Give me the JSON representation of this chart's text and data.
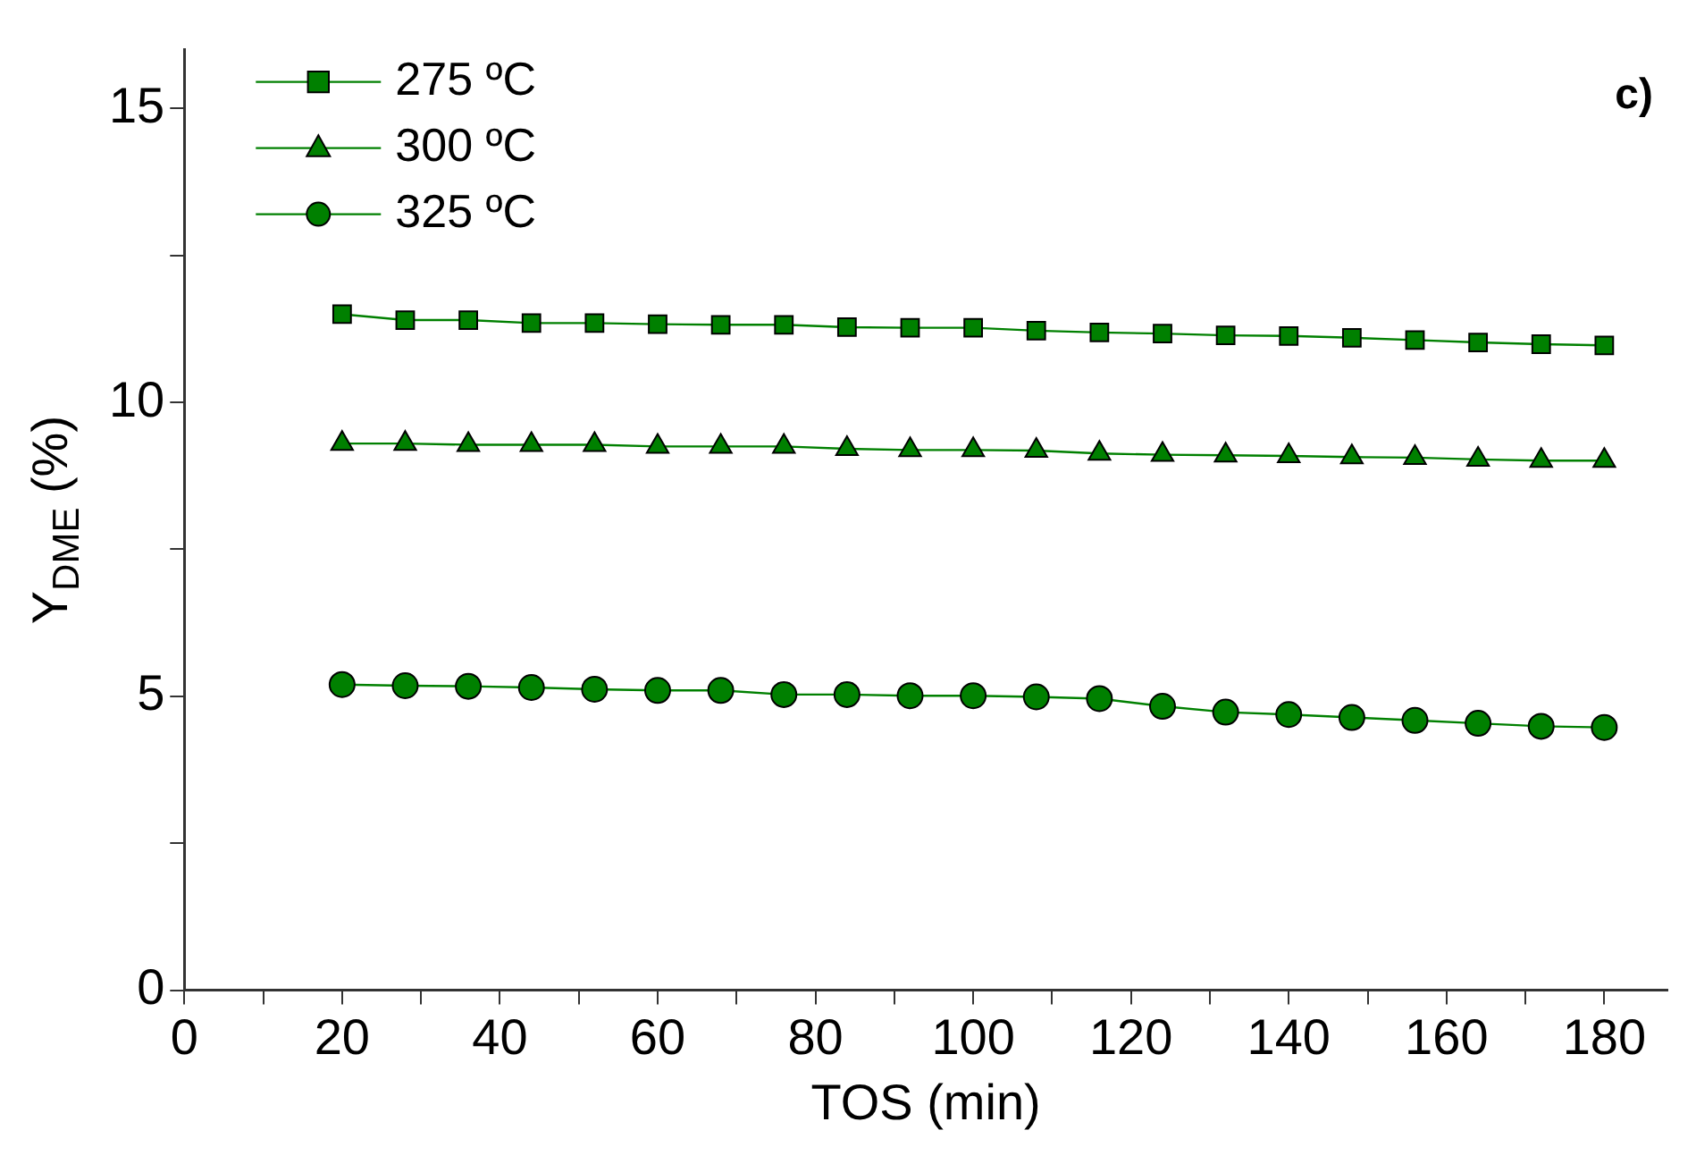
{
  "chart_data": {
    "type": "line",
    "xlabel": "TOS (min)",
    "ylabel": "Y$_{DME}$ (%)",
    "annotations": [
      "c)"
    ],
    "x": [
      20,
      28,
      36,
      44,
      52,
      60,
      68,
      76,
      84,
      92,
      100,
      108,
      116,
      124,
      132,
      140,
      148,
      156,
      164,
      172,
      180
    ],
    "series": [
      {
        "name": "275 ºC",
        "color": "#008000",
        "marker": "square",
        "values": [
          11.5,
          11.4,
          11.4,
          11.35,
          11.35,
          11.33,
          11.32,
          11.32,
          11.28,
          11.27,
          11.27,
          11.22,
          11.19,
          11.17,
          11.14,
          11.13,
          11.1,
          11.06,
          11.02,
          10.99,
          10.97
        ]
      },
      {
        "name": "300 ºC",
        "color": "#008000",
        "marker": "triangle",
        "values": [
          9.3,
          9.3,
          9.28,
          9.28,
          9.28,
          9.25,
          9.25,
          9.25,
          9.21,
          9.19,
          9.19,
          9.18,
          9.13,
          9.11,
          9.1,
          9.09,
          9.07,
          9.06,
          9.03,
          9.01,
          9.01
        ]
      },
      {
        "name": "325 ºC",
        "color": "#008000",
        "marker": "circle",
        "values": [
          5.2,
          5.18,
          5.17,
          5.15,
          5.12,
          5.1,
          5.1,
          5.03,
          5.03,
          5.01,
          5.01,
          4.99,
          4.96,
          4.83,
          4.73,
          4.69,
          4.64,
          4.59,
          4.54,
          4.49,
          4.47
        ]
      }
    ],
    "xlim": [
      0,
      188
    ],
    "xticks": [
      0,
      {
        "value": 10,
        "label": null
      },
      20,
      {
        "value": 30,
        "label": null
      },
      40,
      {
        "value": 50,
        "label": null
      },
      60,
      {
        "value": 70,
        "label": null
      },
      80,
      {
        "value": 90,
        "label": null
      },
      100,
      {
        "value": 110,
        "label": null
      },
      120,
      {
        "value": 130,
        "label": null
      },
      140,
      {
        "value": 150,
        "label": null
      },
      160,
      {
        "value": 170,
        "label": null
      },
      180
    ],
    "ylim": [
      0,
      16
    ],
    "yticks": [
      0,
      {
        "value": 2.5,
        "label": null
      },
      5,
      {
        "value": 7.5,
        "label": null
      },
      10,
      {
        "value": 12.5,
        "label": null
      },
      15
    ],
    "grid": false,
    "legend": "top left",
    "line_style": "solid"
  }
}
